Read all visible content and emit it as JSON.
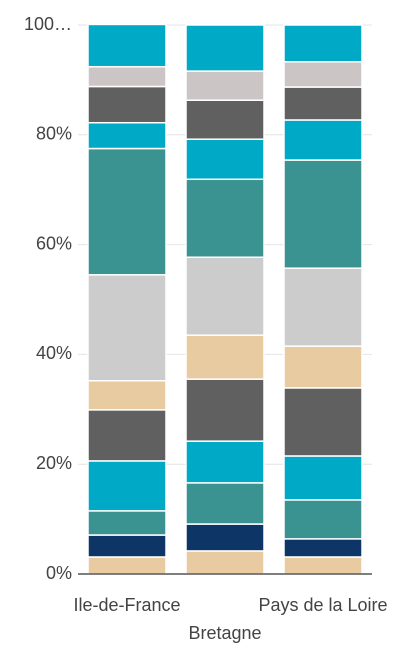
{
  "chart_data": {
    "type": "stacked_bar",
    "categories": [
      "Ile-de-France",
      "Bretagne",
      "Pays de la Loire"
    ],
    "series": [
      {
        "color": "#e8cba0",
        "values": [
          3.1,
          4.2,
          3.1
        ]
      },
      {
        "color": "#0d3566",
        "values": [
          4.0,
          4.9,
          3.3
        ]
      },
      {
        "color": "#3a9390",
        "values": [
          4.4,
          7.5,
          7.1
        ]
      },
      {
        "color": "#00a9c6",
        "values": [
          9.1,
          7.6,
          8.0
        ]
      },
      {
        "color": "#606060",
        "values": [
          9.3,
          11.3,
          12.4
        ]
      },
      {
        "color": "#e8cba0",
        "values": [
          5.3,
          8.0,
          7.6
        ]
      },
      {
        "color": "#cccccc",
        "values": [
          19.3,
          14.2,
          14.2
        ]
      },
      {
        "color": "#3a9390",
        "values": [
          23.0,
          14.2,
          19.7
        ]
      },
      {
        "color": "#00a9c6",
        "values": [
          4.7,
          7.3,
          7.3
        ]
      },
      {
        "color": "#606060",
        "values": [
          6.6,
          7.1,
          6.0
        ]
      },
      {
        "color": "#cbc5c6",
        "values": [
          3.6,
          5.3,
          4.6
        ]
      },
      {
        "color": "#00a9c6",
        "values": [
          7.7,
          8.4,
          6.7
        ]
      }
    ],
    "ylim": [
      0,
      100
    ],
    "yticks": [
      {
        "value": 0,
        "label": "0%"
      },
      {
        "value": 20,
        "label": "20%"
      },
      {
        "value": 40,
        "label": "40%"
      },
      {
        "value": 60,
        "label": "60%"
      },
      {
        "value": 80,
        "label": "80%"
      },
      {
        "value": 100,
        "label": "100…"
      }
    ],
    "grid": true
  }
}
